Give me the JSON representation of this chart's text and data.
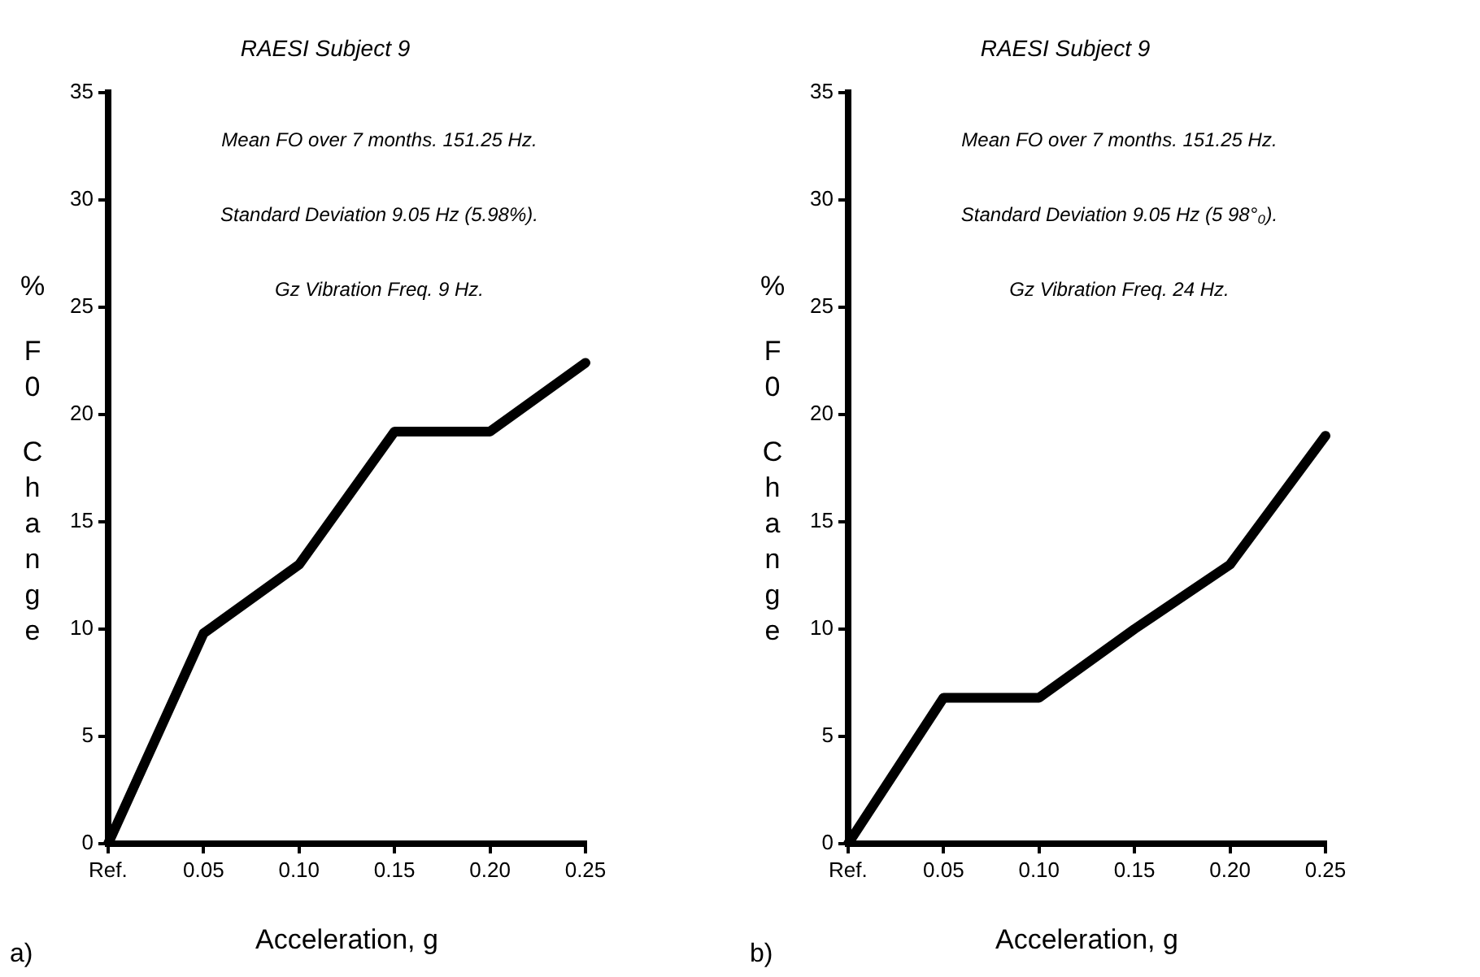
{
  "chart_data": [
    {
      "type": "line",
      "title": "RAESI Subject 9",
      "xlabel": "Acceleration, g",
      "ylabel": "% F0 Change",
      "categories": [
        "Ref.",
        "0.05",
        "0.10",
        "0.15",
        "0.20",
        "0.25"
      ],
      "series": [
        {
          "color": "#000000",
          "values": [
            0,
            9.8,
            13,
            19.2,
            19.2,
            22.4
          ]
        }
      ],
      "ylim": [
        0,
        35
      ],
      "yticks": [
        0,
        5,
        10,
        15,
        20,
        25,
        30,
        35
      ],
      "grid": false,
      "legend": false,
      "marker": "none",
      "line_style": "solid",
      "annotations": [
        "Mean FO over 7 months. 151.25 Hz.",
        "Standard Deviation 9.05 Hz (5.98%).",
        "Gz Vibration Freq. 9 Hz.",
        "a)"
      ]
    },
    {
      "type": "line",
      "title": "RAESI Subject 9",
      "xlabel": "Acceleration, g",
      "ylabel": "% F0 Change",
      "categories": [
        "Ref.",
        "0.05",
        "0.10",
        "0.15",
        "0.20",
        "0.25"
      ],
      "series": [
        {
          "color": "#000000",
          "values": [
            0,
            6.8,
            6.8,
            10,
            13,
            19
          ]
        }
      ],
      "ylim": [
        0,
        35
      ],
      "yticks": [
        0,
        5,
        10,
        15,
        20,
        25,
        30,
        35
      ],
      "grid": false,
      "legend": false,
      "marker": "none",
      "line_style": "solid",
      "annotations": [
        "Mean FO over 7 months. 151.25 Hz.",
        "Standard Deviation 9.05 Hz (5 98°₀).",
        "Gz Vibration Freq. 24 Hz.",
        "b)"
      ]
    }
  ]
}
